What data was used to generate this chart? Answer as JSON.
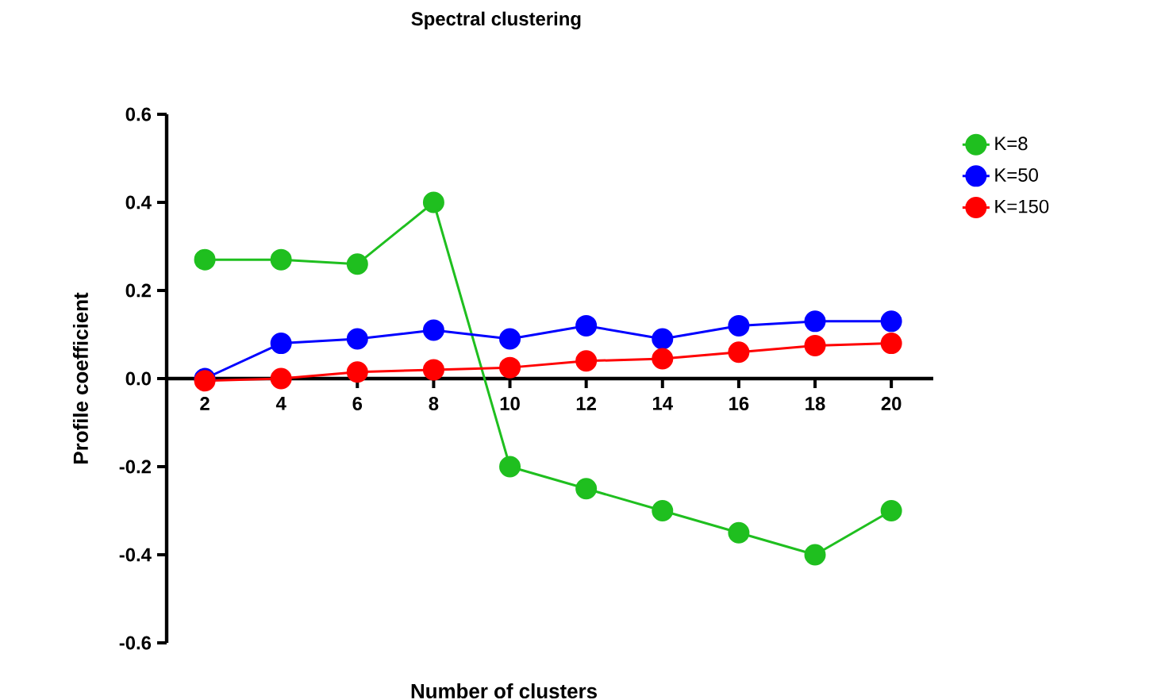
{
  "chart_data": {
    "type": "line",
    "title": "Spectral clustering",
    "xlabel": "Number of clusters",
    "ylabel": "Profile coefficient",
    "x": [
      2,
      4,
      6,
      8,
      10,
      12,
      14,
      16,
      18,
      20
    ],
    "series": [
      {
        "name": "K=8",
        "color": "#1fbf1f",
        "values": [
          0.27,
          0.27,
          0.26,
          0.4,
          -0.2,
          -0.25,
          -0.3,
          -0.35,
          -0.4,
          -0.3
        ]
      },
      {
        "name": "K=50",
        "color": "#0000ff",
        "values": [
          0.0,
          0.08,
          0.09,
          0.11,
          0.09,
          0.12,
          0.09,
          0.12,
          0.13,
          0.13
        ]
      },
      {
        "name": "K=150",
        "color": "#ff0000",
        "values": [
          -0.005,
          0.0,
          0.015,
          0.02,
          0.025,
          0.04,
          0.045,
          0.06,
          0.075,
          0.08
        ]
      }
    ],
    "xlim": [
      1,
      21.1
    ],
    "ylim": [
      -0.6,
      0.6
    ],
    "xticks": [
      2,
      4,
      6,
      8,
      10,
      12,
      14,
      16,
      18,
      20
    ],
    "yticks": [
      {
        "value": -0.6,
        "label": "-0.6"
      },
      {
        "value": -0.4,
        "label": "-0.4"
      },
      {
        "value": -0.2,
        "label": "-0.2"
      },
      {
        "value": 0,
        "label": "0.0"
      },
      {
        "value": 0.2,
        "label": "0.2"
      },
      {
        "value": 0.4,
        "label": "0.4"
      },
      {
        "value": 0.6,
        "label": "0.6"
      }
    ],
    "grid": false,
    "legend": "top right",
    "marker": "circle",
    "line_style": "solid"
  }
}
